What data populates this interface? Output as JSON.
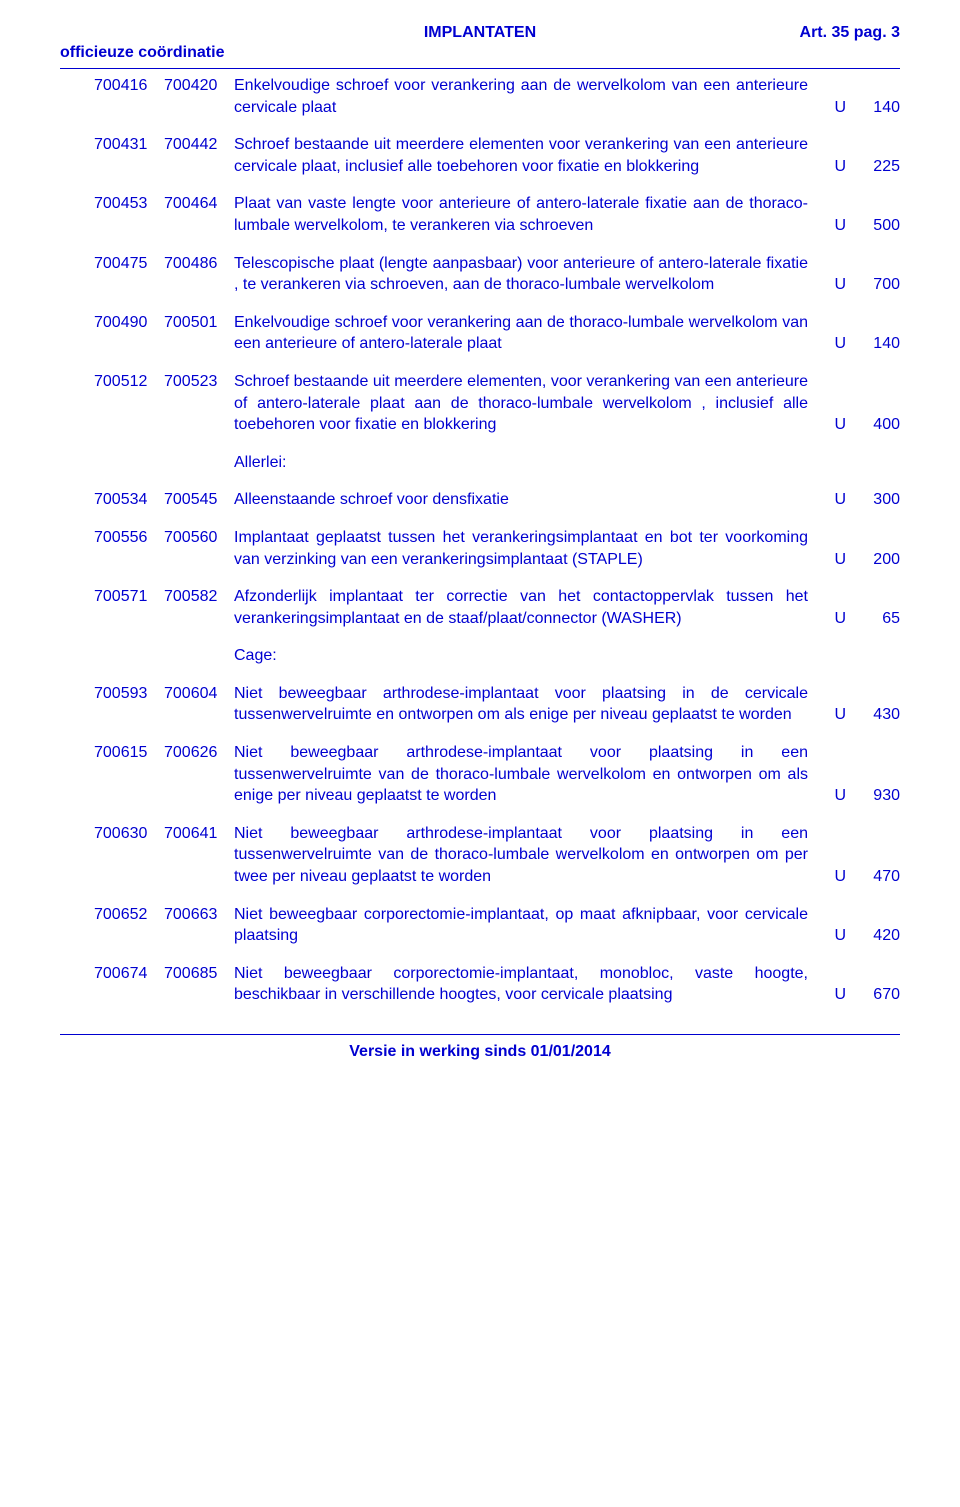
{
  "header": {
    "title_center": "IMPLANTATEN",
    "title_right": "Art. 35 pag. 3",
    "subtitle_left": "officieuze coördinatie"
  },
  "rows": [
    {
      "c1": "700416",
      "c2": "700420",
      "desc": "Enkelvoudige schroef voor verankering aan de wervelkolom van een anterieure cervicale plaat",
      "u": "U",
      "v": "140"
    },
    {
      "c1": "700431",
      "c2": "700442",
      "desc": "Schroef bestaande uit meerdere elementen voor verankering van een anterieure cervicale plaat, inclusief alle toebehoren voor fixatie en blokkering",
      "u": "U",
      "v": "225"
    },
    {
      "c1": "700453",
      "c2": "700464",
      "desc": "Plaat van vaste lengte voor anterieure of antero-laterale fixatie aan de thoraco-lumbale wervelkolom, te verankeren via schroeven",
      "u": "U",
      "v": "500"
    },
    {
      "c1": "700475",
      "c2": "700486",
      "desc": "Telescopische plaat (lengte aanpasbaar) voor anterieure of antero-laterale fixatie , te verankeren via schroeven, aan de thoraco-lumbale wervelkolom",
      "u": "U",
      "v": "700"
    },
    {
      "c1": "700490",
      "c2": "700501",
      "desc": "Enkelvoudige schroef voor verankering aan de thoraco-lumbale wervelkolom van een anterieure of antero-laterale plaat",
      "u": "U",
      "v": "140"
    },
    {
      "c1": "700512",
      "c2": "700523",
      "desc": "Schroef bestaande uit meerdere elementen, voor verankering van een anterieure of antero-laterale plaat aan de thoraco-lumbale wervelkolom , inclusief alle toebehoren voor fixatie en blokkering",
      "u": "U",
      "v": "400"
    }
  ],
  "section_allerlei": "Allerlei:",
  "rows2": [
    {
      "c1": "700534",
      "c2": "700545",
      "desc": "Alleenstaande schroef voor densfixatie",
      "u": "U",
      "v": "300"
    },
    {
      "c1": "700556",
      "c2": "700560",
      "desc": "Implantaat geplaatst tussen het verankeringsimplantaat en bot ter voorkoming van verzinking van een verankeringsimplantaat (STAPLE)",
      "u": "U",
      "v": "200"
    },
    {
      "c1": "700571",
      "c2": "700582",
      "desc": "Afzonderlijk implantaat ter correctie van het contactoppervlak tussen het verankeringsimplantaat en de staaf/plaat/connector (WASHER)",
      "u": "U",
      "v": "65"
    }
  ],
  "section_cage": "Cage:",
  "rows3": [
    {
      "c1": "700593",
      "c2": "700604",
      "desc": "Niet beweegbaar arthrodese-implantaat voor plaatsing in de cervicale tussenwervelruimte en ontworpen om als enige per niveau geplaatst te worden",
      "u": "U",
      "v": "430"
    },
    {
      "c1": "700615",
      "c2": "700626",
      "desc": "Niet beweegbaar arthrodese-implantaat voor plaatsing in een tussenwervelruimte van de thoraco-lumbale wervelkolom en ontworpen om als enige per niveau geplaatst te worden",
      "u": "U",
      "v": "930"
    },
    {
      "c1": "700630",
      "c2": "700641",
      "desc": "Niet beweegbaar arthrodese-implantaat voor plaatsing in een tussenwervelruimte van de thoraco-lumbale wervelkolom en ontworpen om per twee per niveau geplaatst te worden",
      "u": "U",
      "v": "470"
    },
    {
      "c1": "700652",
      "c2": "700663",
      "desc": "Niet beweegbaar corporectomie-implantaat, op maat afknipbaar, voor cervicale plaatsing",
      "u": "U",
      "v": "420"
    },
    {
      "c1": "700674",
      "c2": "700685",
      "desc": "Niet beweegbaar corporectomie-implantaat, monobloc, vaste hoogte, beschikbaar in verschillende hoogtes, voor cervicale plaatsing",
      "u": "U",
      "v": "670"
    }
  ],
  "footer": "Versie in werking sinds 01/01/2014"
}
